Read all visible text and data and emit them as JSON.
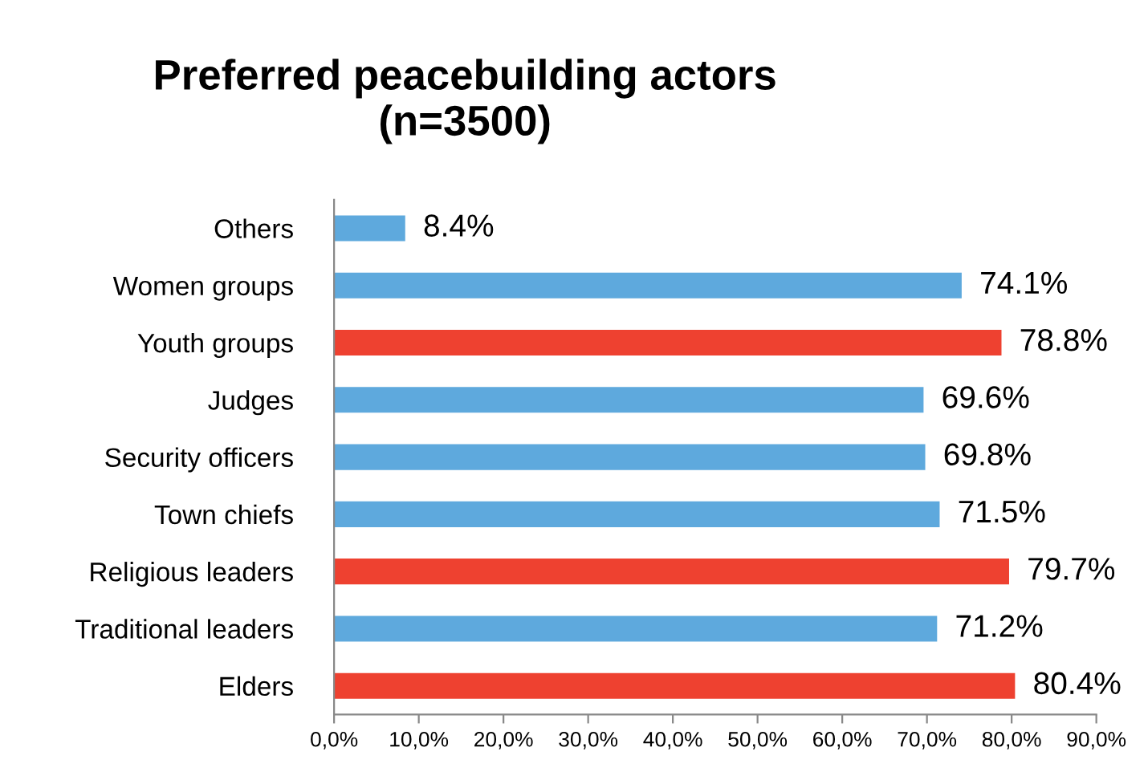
{
  "chart_data": {
    "type": "bar",
    "orientation": "horizontal",
    "title": "Preferred peacebuilding actors\n(n=3500)",
    "categories": [
      "Others",
      "Women groups",
      "Youth groups",
      "Judges",
      "Security officers",
      "Town chiefs",
      "Religious leaders",
      "Traditional leaders",
      "Elders"
    ],
    "values": [
      8.4,
      74.1,
      78.8,
      69.6,
      69.8,
      71.5,
      79.7,
      71.2,
      80.4
    ],
    "colors": [
      "#5ea9dd",
      "#5ea9dd",
      "#ee4130",
      "#5ea9dd",
      "#5ea9dd",
      "#5ea9dd",
      "#ee4130",
      "#5ea9dd",
      "#ee4130"
    ],
    "value_labels": [
      "8.4%",
      "74.1%",
      "78.8%",
      "69.6%",
      "69.8%",
      "71.5%",
      "79.7%",
      "71.2%",
      "80.4%"
    ],
    "xlim": [
      0,
      90
    ],
    "xticks": [
      {
        "value": 0,
        "label": "0,0%"
      },
      {
        "value": 10,
        "label": "10,0%"
      },
      {
        "value": 20,
        "label": "20,0%"
      },
      {
        "value": 30,
        "label": "30,0%"
      },
      {
        "value": 40,
        "label": "40,0%"
      },
      {
        "value": 50,
        "label": "50,0%"
      },
      {
        "value": 60,
        "label": "60,0%"
      },
      {
        "value": 70,
        "label": "70,0%"
      },
      {
        "value": 80,
        "label": "80,0%"
      },
      {
        "value": 90,
        "label": "90,0%"
      }
    ],
    "grid": false,
    "legend": false
  }
}
